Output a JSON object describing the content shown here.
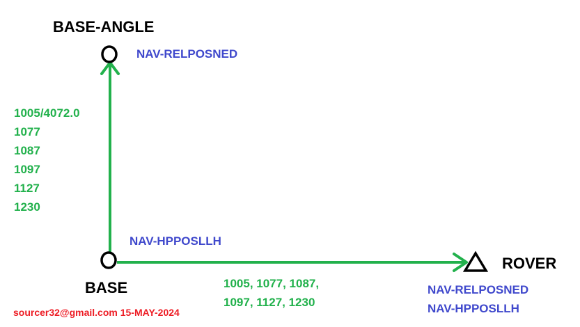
{
  "nodes": {
    "base_angle": {
      "label": "BASE-ANGLE",
      "messages": [
        "NAV-RELPOSNED"
      ]
    },
    "base": {
      "label": "BASE",
      "messages": [
        "NAV-HPPOSLLH"
      ]
    },
    "rover": {
      "label": "ROVER",
      "messages": [
        "NAV-RELPOSNED",
        "NAV-HPPOSLLH"
      ]
    }
  },
  "links": {
    "base_to_base_angle": {
      "rtcm": [
        "1005/4072.0",
        "1077",
        "1087",
        "1097",
        "1127",
        "1230"
      ]
    },
    "base_to_rover": {
      "rtcm_lines": [
        "1005, 1077, 1087,",
        "1097, 1127, 1230"
      ]
    }
  },
  "credit": {
    "email": "sourcer32@gmail.com",
    "date": "15-MAY-2024"
  },
  "colors": {
    "arrow": "#22b14c",
    "rtcm_text": "#22b14c",
    "message_text": "#3f48cc",
    "credit_text": "#ed1c24",
    "node_outline": "#000000"
  }
}
